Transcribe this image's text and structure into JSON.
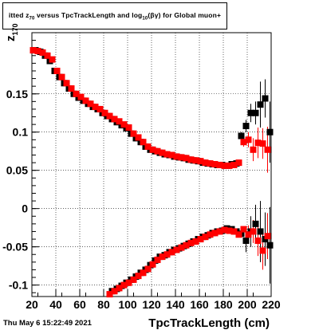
{
  "header": {
    "title_prefix": "itted",
    "title_z": "z",
    "title_z_sub": "70",
    "title_mid": "versus TpcTrackLength and log",
    "title_log_sub": "10",
    "title_end": "(βγ) for Global muon+"
  },
  "footer": {
    "timestamp": "Thu May  6 15:22:49 2021"
  },
  "chart_data": {
    "type": "scatter",
    "title": "itted z70 versus TpcTrackLength and log10(βγ) for Global muon+",
    "xlabel": "TpcTrackLength (cm)",
    "ylabel": "z 170",
    "ylabel_main": "z",
    "ylabel_sub": "170",
    "xlim": [
      20,
      220
    ],
    "ylim": [
      -0.115,
      0.23
    ],
    "x_ticks": [
      20,
      40,
      60,
      80,
      100,
      120,
      140,
      160,
      180,
      200,
      220
    ],
    "x_tick_labels": [
      "20",
      "40",
      "60",
      "80",
      "100",
      "120",
      "140",
      "160",
      "180",
      "200",
      "220"
    ],
    "y_ticks": [
      -0.1,
      -0.05,
      0,
      0.05,
      0.1,
      0.15
    ],
    "y_tick_labels": [
      "-0.1",
      "-0.05",
      "0",
      "0.05",
      "0.1",
      "0.15"
    ],
    "grid": true,
    "colors": {
      "red": "#ff0000",
      "black": "#000000"
    },
    "series": [
      {
        "color": "#000000",
        "marker": "square",
        "points": [
          [
            23,
            0.207
          ],
          [
            27,
            0.205
          ],
          [
            31,
            0.2
          ],
          [
            35,
            0.193
          ],
          [
            39,
            0.18
          ],
          [
            43,
            0.172
          ],
          [
            47,
            0.164
          ],
          [
            51,
            0.157
          ],
          [
            55,
            0.15
          ],
          [
            59,
            0.145
          ],
          [
            63,
            0.141
          ],
          [
            67,
            0.137
          ],
          [
            71,
            0.133
          ],
          [
            75,
            0.13
          ],
          [
            79,
            0.125
          ],
          [
            83,
            0.121
          ],
          [
            87,
            0.117
          ],
          [
            91,
            0.113
          ],
          [
            95,
            0.109
          ],
          [
            99,
            0.105
          ],
          [
            103,
            0.098
          ],
          [
            107,
            0.092
          ],
          [
            111,
            0.087
          ],
          [
            115,
            0.081
          ],
          [
            119,
            0.077
          ],
          [
            123,
            0.075
          ],
          [
            127,
            0.073
          ],
          [
            131,
            0.071
          ],
          [
            135,
            0.07
          ],
          [
            139,
            0.068
          ],
          [
            143,
            0.067
          ],
          [
            147,
            0.066
          ],
          [
            151,
            0.064
          ],
          [
            155,
            0.063
          ],
          [
            159,
            0.062
          ],
          [
            163,
            0.06
          ],
          [
            167,
            0.059
          ],
          [
            171,
            0.058
          ],
          [
            175,
            0.057
          ],
          [
            179,
            0.057
          ],
          [
            183,
            0.056
          ],
          [
            187,
            0.058
          ],
          [
            191,
            0.059
          ],
          [
            195,
            0.095
          ],
          [
            199,
            0.108
          ],
          [
            203,
            0.125
          ],
          [
            207,
            0.125
          ],
          [
            211,
            0.136
          ],
          [
            215,
            0.144
          ],
          [
            219,
            0.1
          ],
          [
            87,
            -0.108
          ],
          [
            91,
            -0.105
          ],
          [
            95,
            -0.101
          ],
          [
            99,
            -0.097
          ],
          [
            103,
            -0.093
          ],
          [
            107,
            -0.089
          ],
          [
            111,
            -0.084
          ],
          [
            115,
            -0.08
          ],
          [
            119,
            -0.074
          ],
          [
            123,
            -0.068
          ],
          [
            127,
            -0.063
          ],
          [
            131,
            -0.061
          ],
          [
            135,
            -0.057
          ],
          [
            139,
            -0.054
          ],
          [
            143,
            -0.052
          ],
          [
            147,
            -0.049
          ],
          [
            151,
            -0.046
          ],
          [
            155,
            -0.043
          ],
          [
            159,
            -0.04
          ],
          [
            163,
            -0.037
          ],
          [
            167,
            -0.035
          ],
          [
            171,
            -0.032
          ],
          [
            175,
            -0.03
          ],
          [
            179,
            -0.029
          ],
          [
            183,
            -0.026
          ],
          [
            187,
            -0.027
          ],
          [
            191,
            -0.03
          ],
          [
            195,
            -0.033
          ],
          [
            199,
            -0.042
          ],
          [
            203,
            -0.03
          ],
          [
            207,
            -0.02
          ],
          [
            211,
            -0.03
          ],
          [
            215,
            -0.04
          ],
          [
            219,
            -0.048
          ]
        ],
        "errors": [
          [
            195,
            0.095,
            0.005
          ],
          [
            199,
            0.108,
            0.008
          ],
          [
            203,
            0.125,
            0.012
          ],
          [
            207,
            0.125,
            0.015
          ],
          [
            211,
            0.136,
            0.03
          ],
          [
            215,
            0.144,
            0.025
          ],
          [
            219,
            0.1,
            0.04
          ],
          [
            199,
            -0.042,
            0.015
          ],
          [
            203,
            -0.03,
            0.02
          ],
          [
            207,
            -0.02,
            0.025
          ],
          [
            211,
            -0.03,
            0.04
          ],
          [
            215,
            -0.04,
            0.035
          ],
          [
            219,
            -0.048,
            0.05
          ]
        ]
      },
      {
        "color": "#ff0000",
        "marker": "square",
        "points": [
          [
            21,
            0.207
          ],
          [
            25,
            0.206
          ],
          [
            29,
            0.204
          ],
          [
            33,
            0.2
          ],
          [
            37,
            0.195
          ],
          [
            41,
            0.18
          ],
          [
            45,
            0.172
          ],
          [
            49,
            0.164
          ],
          [
            53,
            0.157
          ],
          [
            57,
            0.15
          ],
          [
            61,
            0.146
          ],
          [
            65,
            0.141
          ],
          [
            69,
            0.137
          ],
          [
            73,
            0.133
          ],
          [
            77,
            0.13
          ],
          [
            81,
            0.125
          ],
          [
            85,
            0.121
          ],
          [
            89,
            0.117
          ],
          [
            93,
            0.114
          ],
          [
            97,
            0.11
          ],
          [
            101,
            0.106
          ],
          [
            105,
            0.098
          ],
          [
            109,
            0.093
          ],
          [
            113,
            0.087
          ],
          [
            117,
            0.081
          ],
          [
            121,
            0.077
          ],
          [
            125,
            0.075
          ],
          [
            129,
            0.073
          ],
          [
            133,
            0.071
          ],
          [
            137,
            0.07
          ],
          [
            141,
            0.068
          ],
          [
            145,
            0.067
          ],
          [
            149,
            0.066
          ],
          [
            153,
            0.064
          ],
          [
            157,
            0.063
          ],
          [
            161,
            0.062
          ],
          [
            165,
            0.06
          ],
          [
            169,
            0.059
          ],
          [
            173,
            0.058
          ],
          [
            177,
            0.057
          ],
          [
            181,
            0.056
          ],
          [
            185,
            0.056
          ],
          [
            189,
            0.057
          ],
          [
            193,
            0.06
          ],
          [
            197,
            0.087
          ],
          [
            201,
            0.09
          ],
          [
            205,
            0.077
          ],
          [
            209,
            0.086
          ],
          [
            213,
            0.085
          ],
          [
            217,
            0.077
          ],
          [
            85,
            -0.112
          ],
          [
            89,
            -0.108
          ],
          [
            93,
            -0.104
          ],
          [
            97,
            -0.1
          ],
          [
            101,
            -0.097
          ],
          [
            105,
            -0.093
          ],
          [
            109,
            -0.088
          ],
          [
            113,
            -0.084
          ],
          [
            117,
            -0.079
          ],
          [
            121,
            -0.073
          ],
          [
            125,
            -0.067
          ],
          [
            129,
            -0.063
          ],
          [
            133,
            -0.06
          ],
          [
            137,
            -0.057
          ],
          [
            141,
            -0.054
          ],
          [
            145,
            -0.051
          ],
          [
            149,
            -0.048
          ],
          [
            153,
            -0.045
          ],
          [
            157,
            -0.043
          ],
          [
            161,
            -0.04
          ],
          [
            165,
            -0.037
          ],
          [
            169,
            -0.034
          ],
          [
            173,
            -0.032
          ],
          [
            177,
            -0.03
          ],
          [
            181,
            -0.028
          ],
          [
            185,
            -0.029
          ],
          [
            189,
            -0.03
          ],
          [
            193,
            -0.034
          ],
          [
            197,
            -0.027
          ],
          [
            201,
            -0.034
          ],
          [
            205,
            -0.03
          ],
          [
            209,
            -0.042
          ],
          [
            213,
            -0.055
          ],
          [
            217,
            -0.036
          ]
        ],
        "errors": [
          [
            197,
            0.087,
            0.006
          ],
          [
            201,
            0.09,
            0.01
          ],
          [
            205,
            0.077,
            0.015
          ],
          [
            209,
            0.086,
            0.02
          ],
          [
            213,
            0.085,
            0.02
          ],
          [
            217,
            0.077,
            0.03
          ],
          [
            201,
            -0.034,
            0.012
          ],
          [
            205,
            -0.03,
            0.015
          ],
          [
            209,
            -0.042,
            0.02
          ],
          [
            213,
            -0.055,
            0.025
          ],
          [
            217,
            -0.036,
            0.03
          ]
        ]
      }
    ]
  }
}
